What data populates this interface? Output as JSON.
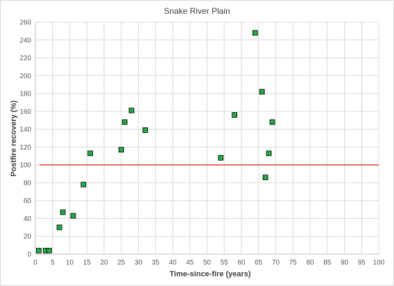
{
  "chart_data": {
    "type": "scatter",
    "title": "Snake River Plain",
    "xlabel": "Time-since-fire (years)",
    "ylabel": "Postfire recovery (%)",
    "xlim": [
      0,
      100
    ],
    "ylim": [
      0,
      260
    ],
    "x_ticks": [
      0,
      5,
      10,
      15,
      20,
      25,
      30,
      35,
      40,
      45,
      50,
      55,
      60,
      65,
      70,
      75,
      80,
      85,
      90,
      95,
      100
    ],
    "y_ticks": [
      0,
      20,
      40,
      60,
      80,
      100,
      120,
      140,
      160,
      180,
      200,
      220,
      240,
      260
    ],
    "grid": true,
    "legend": "none",
    "series": [
      {
        "marker": "square",
        "color": "#22a846",
        "edge_color": "#000000",
        "points": [
          {
            "x": 1,
            "y": 4
          },
          {
            "x": 3,
            "y": 4
          },
          {
            "x": 4,
            "y": 4
          },
          {
            "x": 7,
            "y": 30
          },
          {
            "x": 8,
            "y": 47
          },
          {
            "x": 11,
            "y": 43
          },
          {
            "x": 14,
            "y": 78
          },
          {
            "x": 16,
            "y": 113
          },
          {
            "x": 25,
            "y": 117
          },
          {
            "x": 26,
            "y": 148
          },
          {
            "x": 28,
            "y": 161
          },
          {
            "x": 32,
            "y": 139
          },
          {
            "x": 54,
            "y": 108
          },
          {
            "x": 58,
            "y": 156
          },
          {
            "x": 64,
            "y": 248
          },
          {
            "x": 66,
            "y": 182
          },
          {
            "x": 67,
            "y": 86
          },
          {
            "x": 68,
            "y": 113
          },
          {
            "x": 69,
            "y": 148
          }
        ]
      }
    ],
    "reference_line": {
      "y": 100,
      "color": "#e03c3c"
    }
  }
}
